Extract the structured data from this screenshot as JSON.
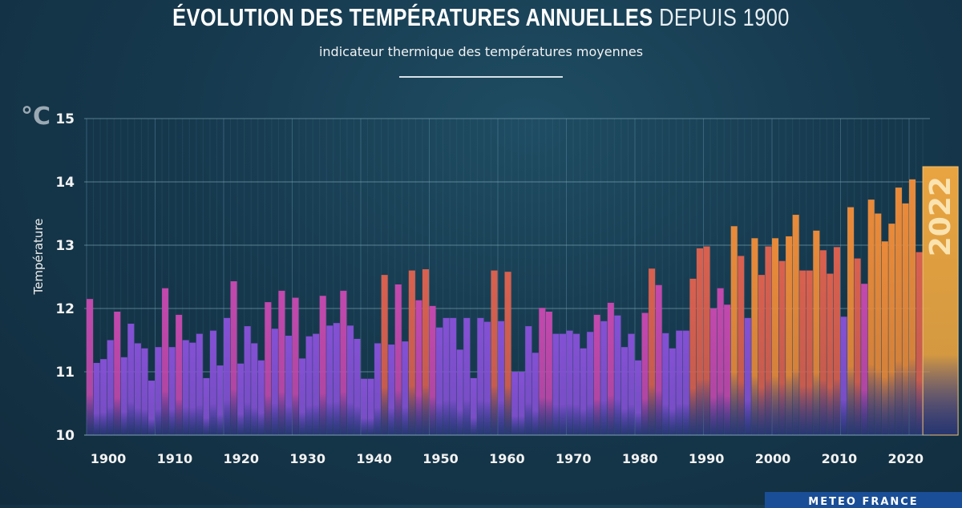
{
  "header": {
    "title_bold": "ÉVOLUTION DES TEMPÉRATURES ANNUELLES",
    "title_light": " DEPUIS 1900",
    "subtitle": "indicateur thermique des températures moyennes"
  },
  "logo_text": "METEO FRANCE",
  "chart_data": {
    "type": "bar",
    "title": "ÉVOLUTION DES TEMPÉRATURES ANNUELLES DEPUIS 1900",
    "subtitle": "indicateur thermique des températures moyennes",
    "ylabel": "Température",
    "yunit": "°C",
    "xlabel": "",
    "ylim": [
      10,
      15
    ],
    "yticks": [
      "10",
      "11",
      "12",
      "13",
      "14",
      "15"
    ],
    "xticks": [
      "1900",
      "1910",
      "1920",
      "1930",
      "1940",
      "1950",
      "1960",
      "1970",
      "1980",
      "1990",
      "2000",
      "2010",
      "2020"
    ],
    "grid": true,
    "highlight": {
      "year": 2022,
      "label": "2022"
    },
    "x_start": 1900,
    "values": [
      12.15,
      11.14,
      11.2,
      11.5,
      11.95,
      11.23,
      11.76,
      11.45,
      11.37,
      10.86,
      11.39,
      12.32,
      11.39,
      11.9,
      11.5,
      11.46,
      11.6,
      10.9,
      11.65,
      11.1,
      11.85,
      12.43,
      11.13,
      11.72,
      11.45,
      11.18,
      12.1,
      11.68,
      12.28,
      11.57,
      12.17,
      11.21,
      11.56,
      11.6,
      12.2,
      11.73,
      11.77,
      12.28,
      11.73,
      11.52,
      10.89,
      10.89,
      11.45,
      12.53,
      11.43,
      12.38,
      11.48,
      12.6,
      12.13,
      12.62,
      12.04,
      11.7,
      11.85,
      11.85,
      11.35,
      11.85,
      10.9,
      11.85,
      11.79,
      12.6,
      11.8,
      12.58,
      11.0,
      11.0,
      11.72,
      11.3,
      12.01,
      11.95,
      11.6,
      11.6,
      11.65,
      11.6,
      11.37,
      11.63,
      11.9,
      11.8,
      12.09,
      11.89,
      11.39,
      11.6,
      11.18,
      11.93,
      12.63,
      12.37,
      11.61,
      11.37,
      11.65,
      11.65,
      12.47,
      12.95,
      12.98,
      12.0,
      12.32,
      12.06,
      13.3,
      12.83,
      11.85,
      13.11,
      12.53,
      12.98,
      13.11,
      12.75,
      13.14,
      13.48,
      12.6,
      12.6,
      13.23,
      12.92,
      12.55,
      12.97,
      11.87,
      13.6,
      12.79,
      12.39,
      13.72,
      13.5,
      13.06,
      13.34,
      13.91,
      13.66,
      14.04,
      12.89,
      14.24
    ],
    "colors": {
      "cool": "#8450d4",
      "mild": "#c248ad",
      "warm": "#d9604f",
      "hot": "#e98a3a",
      "highlight": "#e9a440",
      "background": "#16394e"
    }
  }
}
